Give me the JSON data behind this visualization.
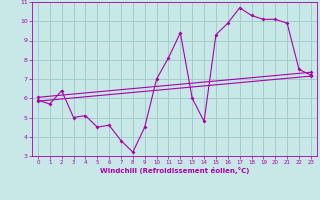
{
  "xlabel": "Windchill (Refroidissement éolien,°C)",
  "background_color": "#c8e8e8",
  "grid_color": "#a0c8c8",
  "line_color": "#aa00aa",
  "xlim": [
    -0.5,
    23.5
  ],
  "ylim": [
    3,
    11
  ],
  "xticks": [
    0,
    1,
    2,
    3,
    4,
    5,
    6,
    7,
    8,
    9,
    10,
    11,
    12,
    13,
    14,
    15,
    16,
    17,
    18,
    19,
    20,
    21,
    22,
    23
  ],
  "yticks": [
    3,
    4,
    5,
    6,
    7,
    8,
    9,
    10,
    11
  ],
  "line1_x": [
    0,
    1,
    2,
    3,
    4,
    5,
    6,
    7,
    8,
    9,
    10,
    11,
    12,
    13,
    14,
    15,
    16,
    17,
    18,
    19,
    20,
    21,
    22,
    23
  ],
  "line1_y": [
    5.9,
    5.7,
    6.4,
    5.0,
    5.1,
    4.5,
    4.6,
    3.8,
    3.2,
    4.5,
    7.0,
    8.1,
    9.4,
    6.0,
    4.8,
    9.3,
    9.9,
    10.7,
    10.3,
    10.1,
    10.1,
    9.9,
    7.5,
    7.2
  ],
  "line2_x": [
    0,
    23
  ],
  "line2_y": [
    5.85,
    7.15
  ],
  "line3_x": [
    0,
    23
  ],
  "line3_y": [
    6.05,
    7.35
  ],
  "label_fontsize": 4.0,
  "xlabel_fontsize": 5.0,
  "tick_fontsize": 4.0,
  "marker_size": 2.0,
  "line_width": 0.8
}
